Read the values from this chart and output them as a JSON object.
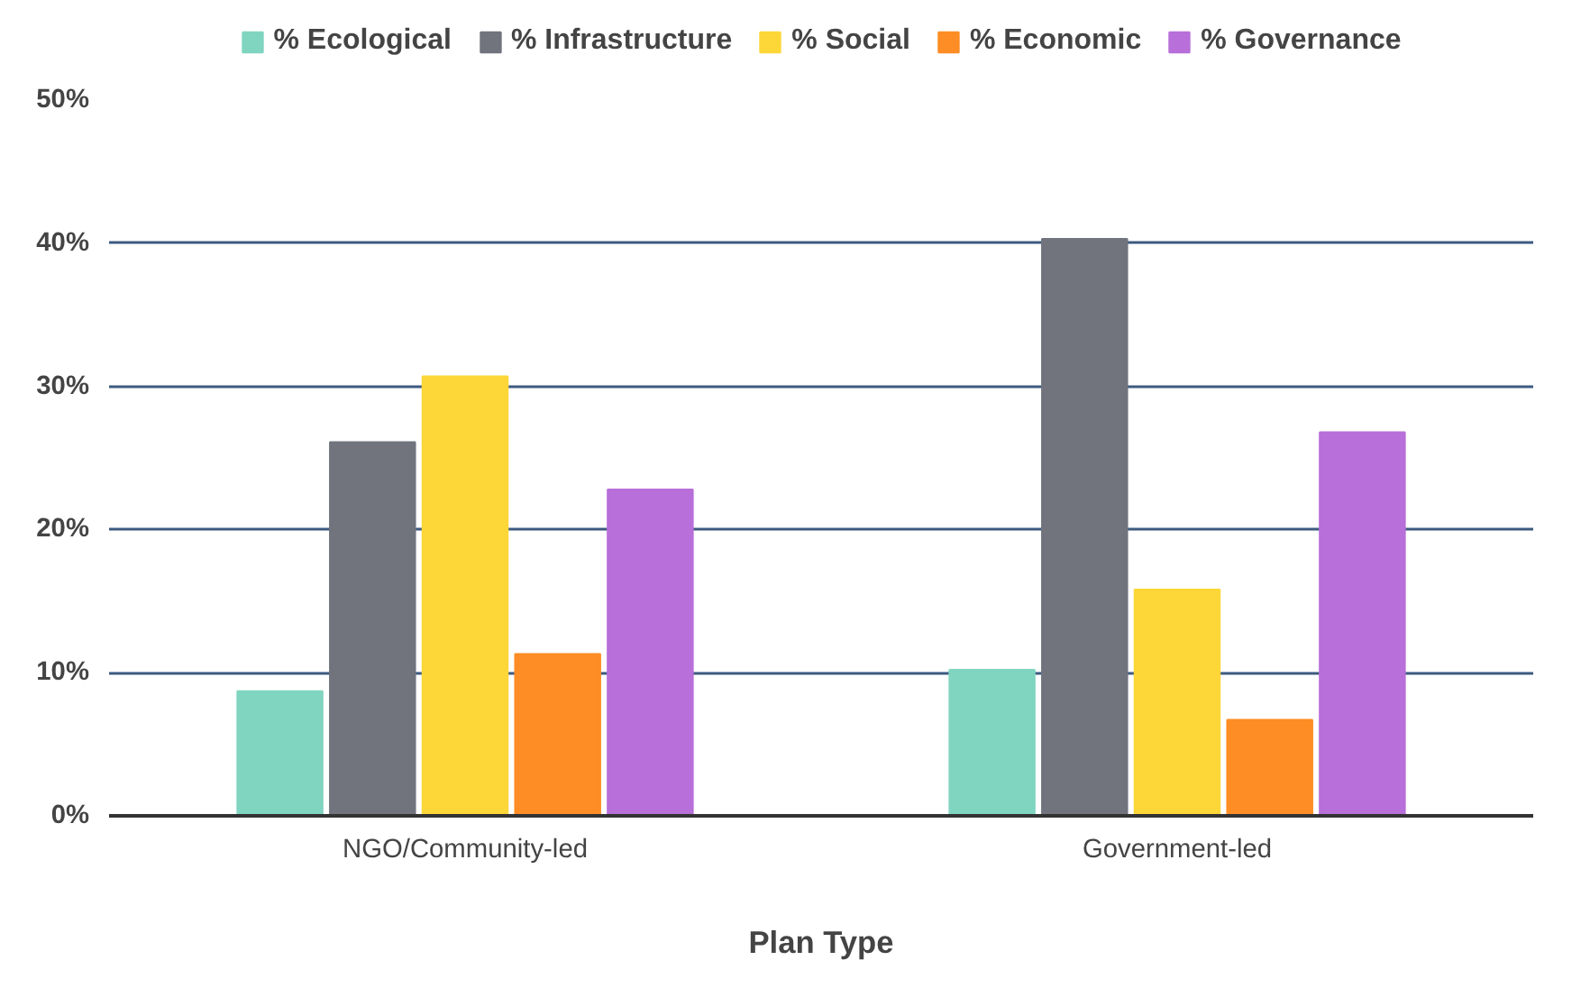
{
  "chart_data": {
    "type": "bar",
    "xlabel": "Plan Type",
    "categories": [
      "NGO/Community-led",
      "Government-led"
    ],
    "series": [
      {
        "name": "% Ecological",
        "color": "#80d5c0",
        "values": [
          8.7,
          10.2
        ]
      },
      {
        "name": "% Infrastructure",
        "color": "#71747d",
        "values": [
          26.1,
          40.3
        ]
      },
      {
        "name": "% Social",
        "color": "#fdd638",
        "values": [
          30.7,
          15.8
        ]
      },
      {
        "name": "% Economic",
        "color": "#fd8d24",
        "values": [
          11.3,
          6.7
        ]
      },
      {
        "name": "% Governance",
        "color": "#b86fd9",
        "values": [
          22.8,
          26.8
        ]
      }
    ],
    "ylim": [
      0,
      50
    ],
    "yticks": [
      {
        "value": 0,
        "label": "0%"
      },
      {
        "value": 10,
        "label": "10%"
      },
      {
        "value": 20,
        "label": "20%"
      },
      {
        "value": 30,
        "label": "30%"
      },
      {
        "value": 40,
        "label": "40%"
      },
      {
        "value": 50,
        "label": "50%"
      }
    ],
    "grid": "y",
    "legend": "top"
  }
}
